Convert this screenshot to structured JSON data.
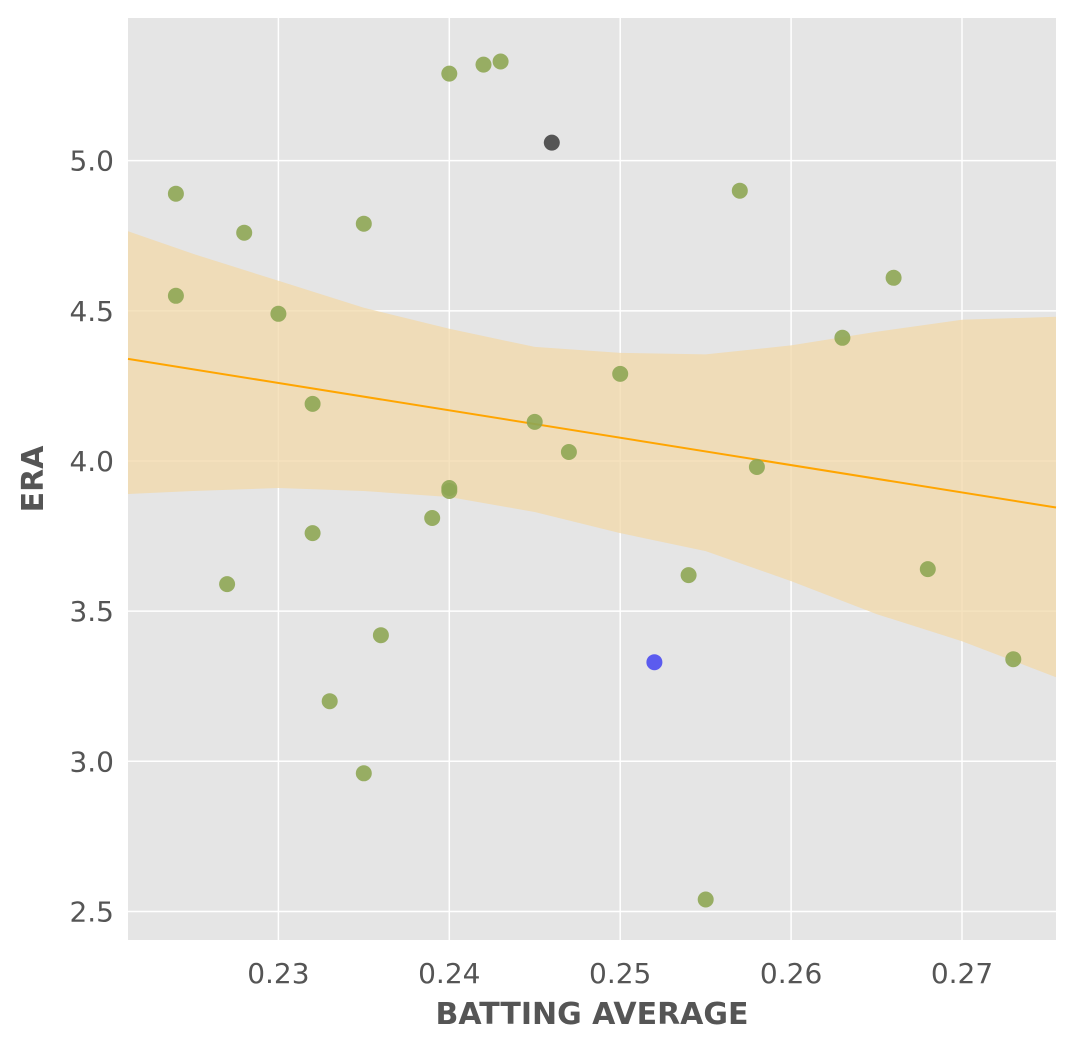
{
  "chart_data": {
    "type": "scatter",
    "title": "",
    "xlabel": "BATTING AVERAGE",
    "ylabel": "ERA",
    "xlim": [
      0.2212,
      0.2755
    ],
    "ylim": [
      2.405,
      5.475
    ],
    "x_ticks": [
      0.23,
      0.24,
      0.25,
      0.26,
      0.27
    ],
    "x_tick_labels": [
      "0.23",
      "0.24",
      "0.25",
      "0.26",
      "0.27"
    ],
    "y_ticks": [
      2.5,
      3.0,
      3.5,
      4.0,
      4.5,
      5.0
    ],
    "y_tick_labels": [
      "2.5",
      "3.0",
      "3.5",
      "4.0",
      "4.5",
      "5.0"
    ],
    "grid": true,
    "colors": {
      "background": "#e5e5e5",
      "points": "#8ea654",
      "highlight_dark": "#555555",
      "highlight_blue": "#5b5bef",
      "regression_line": "#ffa500",
      "confidence_band": "#f2d8a8"
    },
    "series": [
      {
        "color": "#8ea654",
        "points": [
          [
            0.224,
            4.89
          ],
          [
            0.224,
            4.55
          ],
          [
            0.227,
            3.59
          ],
          [
            0.228,
            4.76
          ],
          [
            0.23,
            4.49
          ],
          [
            0.232,
            4.19
          ],
          [
            0.232,
            3.76
          ],
          [
            0.233,
            3.2
          ],
          [
            0.235,
            4.79
          ],
          [
            0.235,
            2.96
          ],
          [
            0.236,
            3.42
          ],
          [
            0.239,
            3.81
          ],
          [
            0.24,
            5.29
          ],
          [
            0.24,
            3.91
          ],
          [
            0.24,
            3.9
          ],
          [
            0.242,
            5.32
          ],
          [
            0.243,
            5.33
          ],
          [
            0.245,
            4.13
          ],
          [
            0.247,
            4.03
          ],
          [
            0.25,
            4.29
          ],
          [
            0.254,
            3.62
          ],
          [
            0.255,
            2.54
          ],
          [
            0.257,
            4.9
          ],
          [
            0.258,
            3.98
          ],
          [
            0.263,
            4.41
          ],
          [
            0.266,
            4.61
          ],
          [
            0.268,
            3.64
          ],
          [
            0.273,
            3.34
          ]
        ]
      },
      {
        "color": "#555555",
        "points": [
          [
            0.246,
            5.06
          ]
        ]
      },
      {
        "color": "#5b5bef",
        "points": [
          [
            0.252,
            3.33
          ]
        ]
      }
    ],
    "regression": {
      "x": [
        0.2212,
        0.2755
      ],
      "y": [
        4.34,
        3.845
      ]
    },
    "confidence_band": {
      "x": [
        0.2212,
        0.225,
        0.23,
        0.235,
        0.24,
        0.245,
        0.25,
        0.255,
        0.26,
        0.265,
        0.27,
        0.2755
      ],
      "upper": [
        4.765,
        4.69,
        4.6,
        4.51,
        4.44,
        4.38,
        4.36,
        4.355,
        4.385,
        4.43,
        4.47,
        4.48
      ],
      "lower": [
        3.89,
        3.9,
        3.91,
        3.9,
        3.88,
        3.83,
        3.76,
        3.7,
        3.6,
        3.49,
        3.4,
        3.28
      ]
    }
  }
}
